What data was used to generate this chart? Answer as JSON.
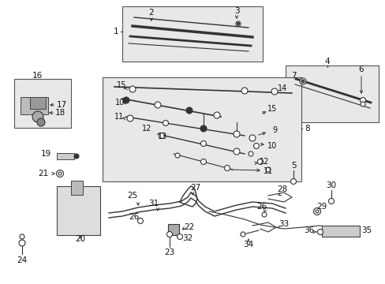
{
  "bg_color": "#ffffff",
  "box_fill": "#e8e8e8",
  "line_color": "#333333",
  "font_size": 7.5
}
